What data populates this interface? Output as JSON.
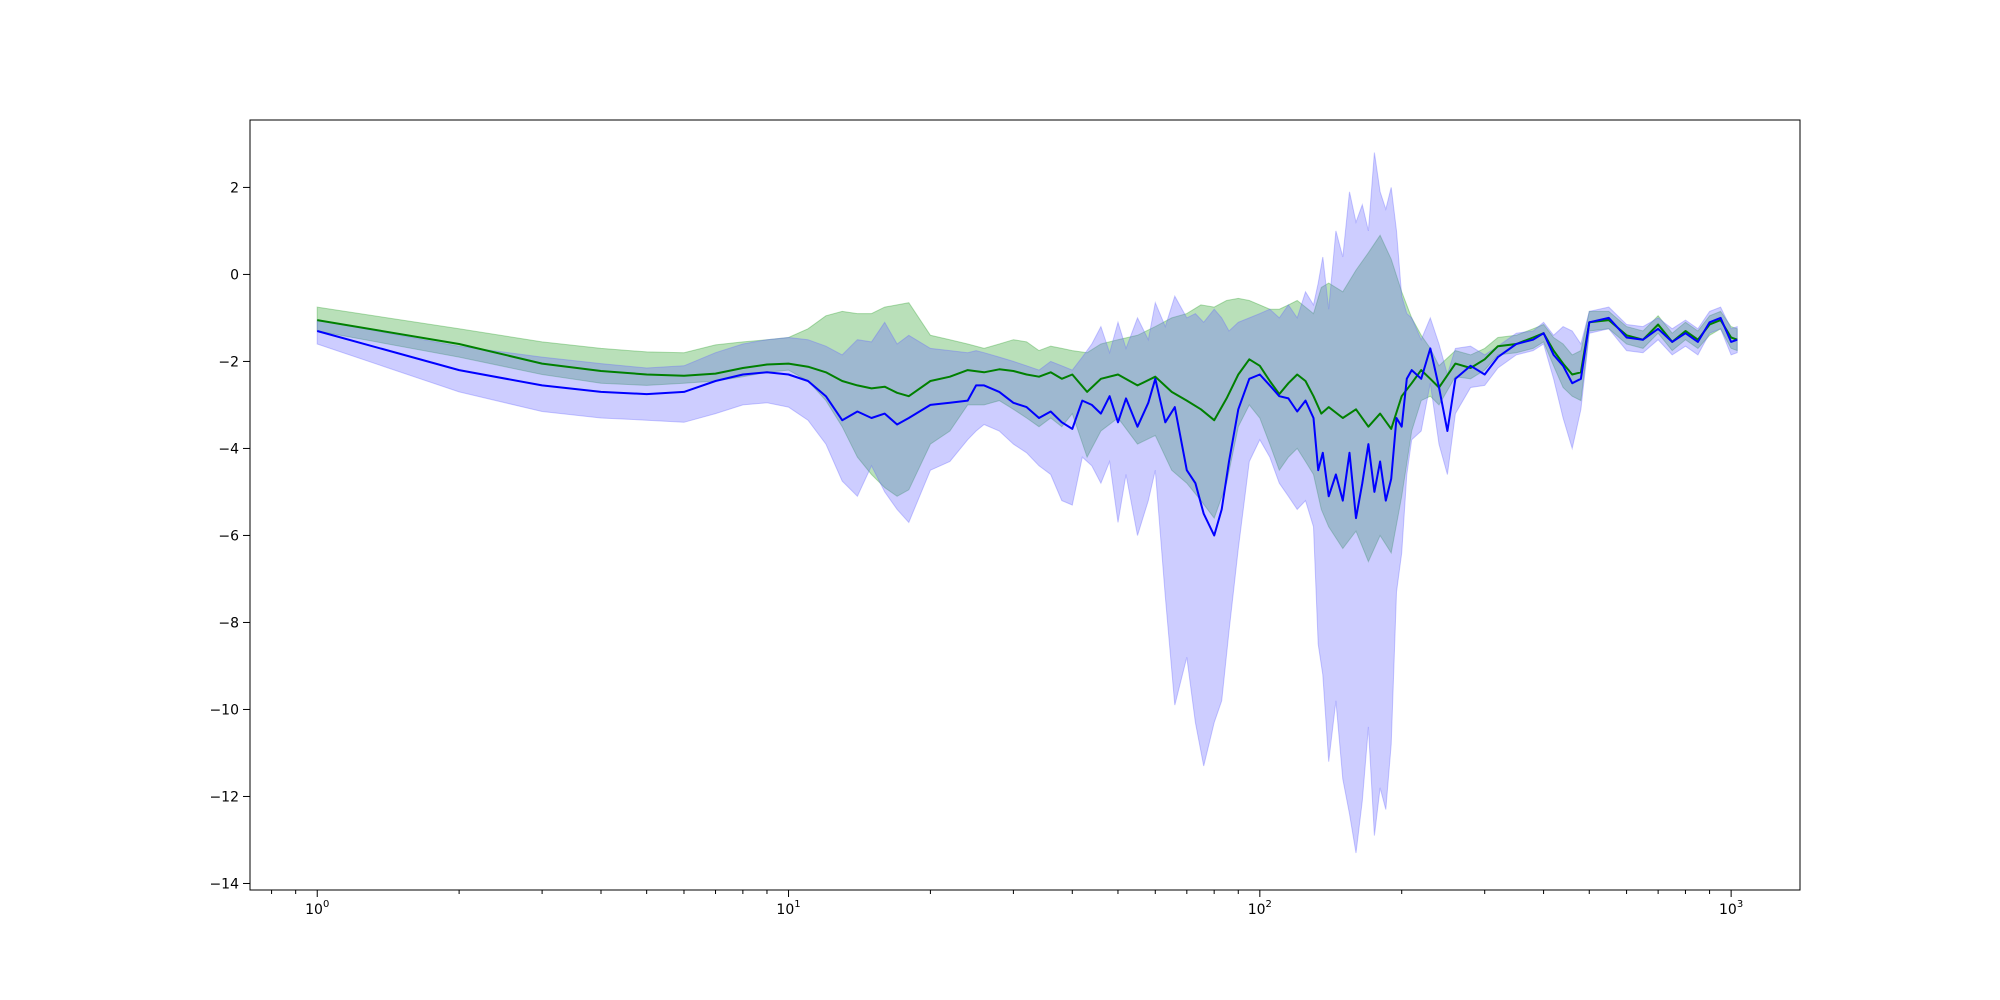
{
  "chart_data": {
    "type": "line",
    "title": "",
    "xlabel": "",
    "ylabel": "",
    "xscale": "log",
    "xlim": [
      0.72,
      1400
    ],
    "ylim": [
      -14.15,
      3.55
    ],
    "grid": false,
    "x_ticks": [
      {
        "base": "10",
        "exp": "0",
        "value": 1
      },
      {
        "base": "10",
        "exp": "1",
        "value": 10
      },
      {
        "base": "10",
        "exp": "2",
        "value": 100
      },
      {
        "base": "10",
        "exp": "3",
        "value": 1000
      }
    ],
    "y_ticks": [
      {
        "label": "2",
        "value": 2
      },
      {
        "label": "0",
        "value": 0
      },
      {
        "label": "−2",
        "value": -2
      },
      {
        "label": "−4",
        "value": -4
      },
      {
        "label": "−6",
        "value": -6
      },
      {
        "label": "−8",
        "value": -8
      },
      {
        "label": "−10",
        "value": -10
      },
      {
        "label": "−12",
        "value": -12
      },
      {
        "label": "−14",
        "value": -14
      }
    ],
    "series": [
      {
        "color": "#008000",
        "band_color": "#2ca02c",
        "x": [
          1,
          2,
          3,
          4,
          5,
          6,
          7,
          8,
          9,
          10,
          11,
          12,
          13,
          14,
          15,
          16,
          17,
          18,
          20,
          22,
          24,
          26,
          28,
          30,
          32,
          34,
          36,
          38,
          40,
          43,
          46,
          50,
          55,
          60,
          65,
          70,
          75,
          80,
          85,
          90,
          95,
          100,
          105,
          110,
          115,
          120,
          125,
          130,
          135,
          140,
          150,
          160,
          170,
          180,
          190,
          200,
          210,
          220,
          230,
          240,
          260,
          280,
          300,
          320,
          350,
          380,
          400,
          420,
          440,
          460,
          480,
          500,
          550,
          600,
          650,
          700,
          750,
          800,
          850,
          900,
          950,
          1000,
          1030
        ],
        "mean": [
          -1.05,
          -1.6,
          -2.05,
          -2.22,
          -2.3,
          -2.33,
          -2.28,
          -2.15,
          -2.07,
          -2.05,
          -2.12,
          -2.25,
          -2.45,
          -2.55,
          -2.62,
          -2.58,
          -2.72,
          -2.8,
          -2.45,
          -2.35,
          -2.2,
          -2.25,
          -2.18,
          -2.22,
          -2.3,
          -2.35,
          -2.25,
          -2.4,
          -2.3,
          -2.7,
          -2.4,
          -2.3,
          -2.55,
          -2.35,
          -2.7,
          -2.9,
          -3.1,
          -3.35,
          -2.85,
          -2.3,
          -1.95,
          -2.1,
          -2.45,
          -2.75,
          -2.5,
          -2.3,
          -2.45,
          -2.8,
          -3.2,
          -3.05,
          -3.3,
          -3.1,
          -3.5,
          -3.2,
          -3.55,
          -2.8,
          -2.5,
          -2.2,
          -2.4,
          -2.6,
          -2.05,
          -2.15,
          -1.95,
          -1.65,
          -1.6,
          -1.45,
          -1.35,
          -1.75,
          -2.05,
          -2.3,
          -2.25,
          -1.1,
          -1.05,
          -1.4,
          -1.5,
          -1.15,
          -1.55,
          -1.3,
          -1.5,
          -1.15,
          -1.05,
          -1.45,
          -1.5
        ],
        "lower": [
          -1.3,
          -1.9,
          -2.3,
          -2.5,
          -2.55,
          -2.5,
          -2.45,
          -2.35,
          -2.25,
          -2.2,
          -2.45,
          -2.9,
          -3.5,
          -4.2,
          -4.6,
          -4.9,
          -5.1,
          -4.95,
          -3.9,
          -3.6,
          -3.0,
          -3.0,
          -2.9,
          -3.1,
          -3.3,
          -3.5,
          -3.3,
          -3.5,
          -3.2,
          -4.2,
          -3.6,
          -3.3,
          -3.9,
          -3.7,
          -4.5,
          -4.8,
          -5.2,
          -5.6,
          -4.8,
          -3.5,
          -3.0,
          -3.3,
          -3.9,
          -4.5,
          -4.2,
          -4.0,
          -4.3,
          -4.6,
          -5.4,
          -5.8,
          -6.3,
          -5.9,
          -6.6,
          -6.0,
          -6.4,
          -5.1,
          -3.6,
          -2.9,
          -2.8,
          -3.0,
          -2.35,
          -2.4,
          -2.2,
          -1.85,
          -1.8,
          -1.7,
          -1.55,
          -2.1,
          -2.6,
          -2.8,
          -2.9,
          -1.3,
          -1.25,
          -1.6,
          -1.7,
          -1.35,
          -1.75,
          -1.5,
          -1.7,
          -1.4,
          -1.25,
          -1.7,
          -1.75
        ],
        "upper": [
          -0.75,
          -1.25,
          -1.55,
          -1.7,
          -1.78,
          -1.8,
          -1.62,
          -1.55,
          -1.5,
          -1.45,
          -1.25,
          -0.95,
          -0.85,
          -0.9,
          -0.9,
          -0.75,
          -0.7,
          -0.65,
          -1.4,
          -1.5,
          -1.6,
          -1.7,
          -1.6,
          -1.5,
          -1.55,
          -1.75,
          -1.65,
          -1.7,
          -1.75,
          -1.8,
          -1.6,
          -1.5,
          -1.4,
          -1.2,
          -1.0,
          -0.9,
          -0.7,
          -0.75,
          -0.6,
          -0.55,
          -0.6,
          -0.7,
          -0.8,
          -0.8,
          -0.7,
          -0.6,
          -0.75,
          -0.9,
          -0.3,
          -0.2,
          -0.4,
          0.1,
          0.5,
          0.9,
          0.35,
          -0.4,
          -1.0,
          -1.4,
          -1.7,
          -2.1,
          -1.75,
          -1.85,
          -1.7,
          -1.45,
          -1.4,
          -1.25,
          -1.15,
          -1.45,
          -1.6,
          -1.85,
          -1.75,
          -0.85,
          -0.85,
          -1.2,
          -1.3,
          -0.95,
          -1.35,
          -1.1,
          -1.3,
          -0.95,
          -0.85,
          -1.2,
          -1.25
        ]
      },
      {
        "color": "#0000ff",
        "band_color": "#6666ff",
        "x": [
          1,
          2,
          3,
          4,
          5,
          6,
          7,
          8,
          9,
          10,
          11,
          12,
          13,
          14,
          15,
          16,
          17,
          18,
          20,
          22,
          24,
          25,
          26,
          28,
          30,
          32,
          34,
          36,
          38,
          40,
          42,
          44,
          46,
          48,
          50,
          52,
          55,
          58,
          60,
          63,
          66,
          70,
          73,
          76,
          80,
          83,
          86,
          90,
          95,
          100,
          105,
          110,
          115,
          120,
          125,
          130,
          133,
          136,
          140,
          145,
          150,
          155,
          160,
          165,
          170,
          175,
          180,
          185,
          190,
          195,
          200,
          205,
          210,
          220,
          230,
          240,
          250,
          260,
          280,
          300,
          320,
          350,
          380,
          400,
          420,
          440,
          460,
          480,
          500,
          550,
          600,
          650,
          700,
          750,
          800,
          850,
          900,
          950,
          1000,
          1030
        ],
        "mean": [
          -1.3,
          -2.2,
          -2.55,
          -2.7,
          -2.75,
          -2.7,
          -2.45,
          -2.3,
          -2.25,
          -2.3,
          -2.45,
          -2.8,
          -3.35,
          -3.15,
          -3.3,
          -3.2,
          -3.45,
          -3.3,
          -3.0,
          -2.95,
          -2.9,
          -2.55,
          -2.55,
          -2.7,
          -2.95,
          -3.05,
          -3.3,
          -3.15,
          -3.4,
          -3.55,
          -2.9,
          -3.0,
          -3.2,
          -2.8,
          -3.4,
          -2.85,
          -3.5,
          -2.95,
          -2.4,
          -3.4,
          -3.05,
          -4.5,
          -4.8,
          -5.5,
          -6.0,
          -5.4,
          -4.3,
          -3.1,
          -2.4,
          -2.3,
          -2.55,
          -2.8,
          -2.85,
          -3.15,
          -2.9,
          -3.3,
          -4.5,
          -4.1,
          -5.1,
          -4.6,
          -5.2,
          -4.1,
          -5.6,
          -4.8,
          -3.9,
          -5.0,
          -4.3,
          -5.2,
          -4.7,
          -3.3,
          -3.5,
          -2.4,
          -2.2,
          -2.4,
          -1.7,
          -2.6,
          -3.6,
          -2.4,
          -2.1,
          -2.3,
          -1.9,
          -1.6,
          -1.5,
          -1.35,
          -1.85,
          -2.1,
          -2.5,
          -2.4,
          -1.1,
          -1.0,
          -1.45,
          -1.5,
          -1.25,
          -1.55,
          -1.35,
          -1.55,
          -1.1,
          -1.0,
          -1.55,
          -1.5
        ],
        "lower": [
          -1.6,
          -2.7,
          -3.15,
          -3.3,
          -3.35,
          -3.4,
          -3.2,
          -3.0,
          -2.95,
          -3.05,
          -3.35,
          -3.9,
          -4.75,
          -5.1,
          -4.4,
          -5.0,
          -5.4,
          -5.7,
          -4.5,
          -4.3,
          -3.8,
          -3.6,
          -3.45,
          -3.6,
          -3.9,
          -4.1,
          -4.4,
          -4.6,
          -5.2,
          -5.3,
          -4.2,
          -4.4,
          -4.8,
          -4.3,
          -5.7,
          -4.6,
          -6.0,
          -5.2,
          -4.5,
          -7.4,
          -9.9,
          -8.8,
          -10.3,
          -11.3,
          -10.3,
          -9.8,
          -8.2,
          -6.3,
          -4.3,
          -3.8,
          -4.2,
          -4.8,
          -5.1,
          -5.4,
          -5.2,
          -5.8,
          -8.5,
          -9.2,
          -11.2,
          -9.8,
          -11.6,
          -12.4,
          -13.3,
          -12.1,
          -10.4,
          -12.9,
          -11.8,
          -12.3,
          -10.8,
          -7.3,
          -6.4,
          -4.6,
          -3.8,
          -3.6,
          -2.5,
          -3.9,
          -4.6,
          -3.2,
          -2.6,
          -2.55,
          -2.15,
          -1.85,
          -1.75,
          -1.6,
          -2.4,
          -3.3,
          -4.0,
          -3.1,
          -1.35,
          -1.25,
          -1.75,
          -1.8,
          -1.5,
          -1.85,
          -1.65,
          -1.85,
          -1.35,
          -1.25,
          -1.85,
          -1.8
        ],
        "upper": [
          -1.05,
          -1.65,
          -1.9,
          -2.05,
          -2.15,
          -2.1,
          -1.8,
          -1.6,
          -1.5,
          -1.45,
          -1.5,
          -1.65,
          -1.85,
          -1.5,
          -1.55,
          -1.1,
          -1.6,
          -1.4,
          -1.7,
          -1.75,
          -1.8,
          -1.75,
          -1.8,
          -1.9,
          -2.0,
          -2.1,
          -2.2,
          -2.0,
          -2.1,
          -2.2,
          -1.9,
          -1.6,
          -1.2,
          -1.8,
          -1.1,
          -1.7,
          -1.0,
          -1.5,
          -0.65,
          -1.2,
          -0.5,
          -1.0,
          -0.9,
          -1.1,
          -0.8,
          -1.0,
          -1.3,
          -1.1,
          -1.0,
          -0.9,
          -0.8,
          -1.0,
          -0.7,
          -1.0,
          -0.4,
          -0.7,
          -0.2,
          0.4,
          -0.8,
          1.0,
          0.4,
          1.9,
          1.2,
          1.6,
          1.0,
          2.8,
          1.9,
          1.5,
          2.0,
          1.0,
          -0.5,
          -0.9,
          -1.0,
          -1.5,
          -1.0,
          -1.6,
          -2.3,
          -1.7,
          -1.65,
          -1.85,
          -1.65,
          -1.35,
          -1.3,
          -1.1,
          -1.4,
          -1.2,
          -1.3,
          -1.6,
          -0.85,
          -0.75,
          -1.15,
          -1.2,
          -1.0,
          -1.25,
          -1.05,
          -1.25,
          -0.85,
          -0.75,
          -1.25,
          -1.2
        ]
      }
    ]
  }
}
